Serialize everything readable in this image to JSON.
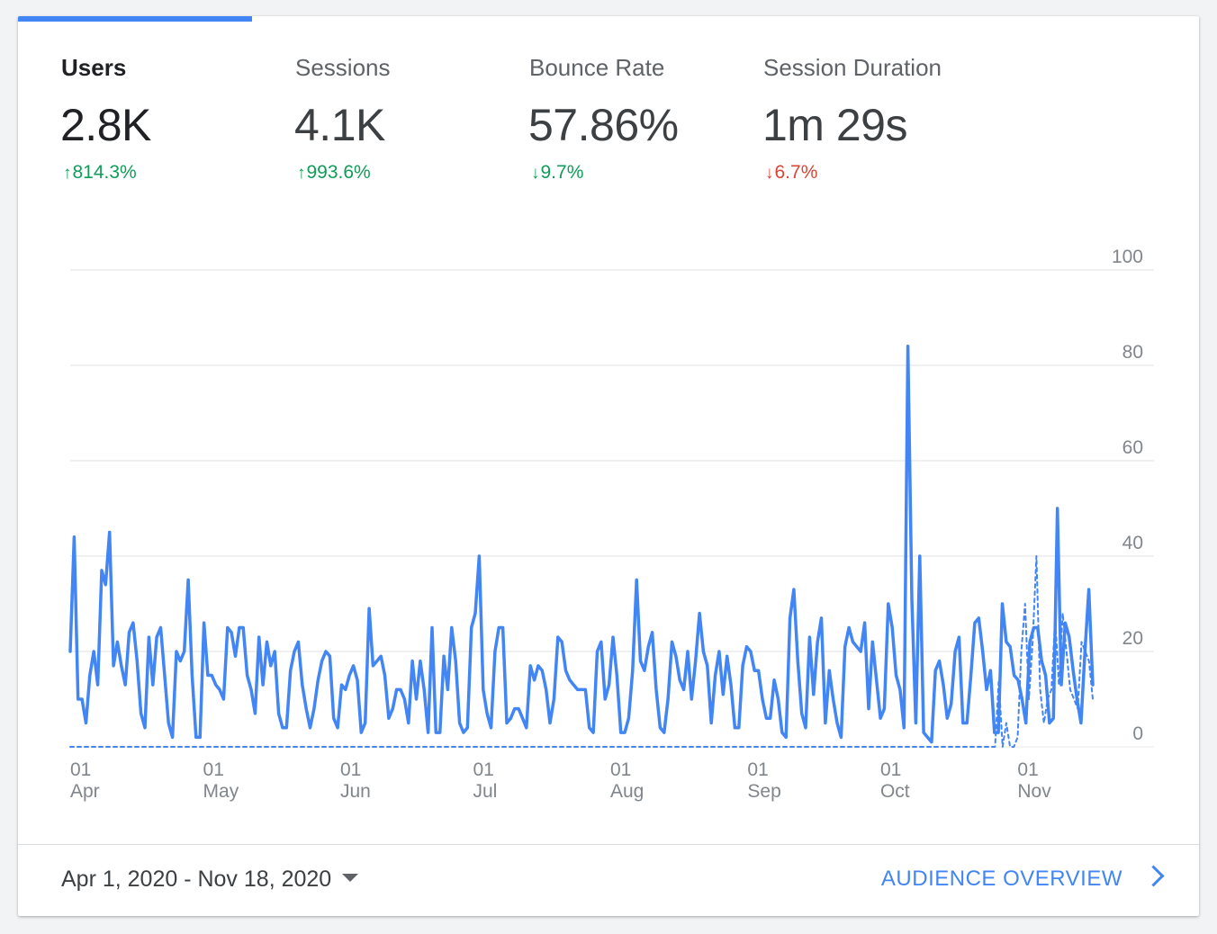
{
  "metrics": [
    {
      "label": "Users",
      "value": "2.8K",
      "change": "814.3%",
      "direction": "up",
      "color": "#0f9d58",
      "active": true
    },
    {
      "label": "Sessions",
      "value": "4.1K",
      "change": "993.6%",
      "direction": "up",
      "color": "#0f9d58",
      "active": false
    },
    {
      "label": "Bounce Rate",
      "value": "57.86%",
      "change": "9.7%",
      "direction": "down",
      "color": "#0f9d58",
      "active": false
    },
    {
      "label": "Session Duration",
      "value": "1m 29s",
      "change": "6.7%",
      "direction": "down",
      "color": "#db4437",
      "active": false
    }
  ],
  "icons": {
    "up": "arrow-up-icon",
    "down": "arrow-down-icon",
    "caret": "caret-down-icon",
    "chevron": "chevron-right-icon"
  },
  "colors": {
    "accent": "#4285f4",
    "positive": "#0f9d58",
    "negative": "#db4437"
  },
  "chart_data": {
    "type": "line",
    "x_start": "2020-04-01",
    "x_end": "2020-11-18",
    "ylim": [
      0,
      100
    ],
    "yticks": [
      0,
      20,
      40,
      60,
      80,
      100
    ],
    "xticks": [
      {
        "day": "01",
        "month": "Apr",
        "date": "2020-04-01"
      },
      {
        "day": "01",
        "month": "May",
        "date": "2020-05-01"
      },
      {
        "day": "01",
        "month": "Jun",
        "date": "2020-06-01"
      },
      {
        "day": "01",
        "month": "Jul",
        "date": "2020-07-01"
      },
      {
        "day": "01",
        "month": "Aug",
        "date": "2020-08-01"
      },
      {
        "day": "01",
        "month": "Sep",
        "date": "2020-09-01"
      },
      {
        "day": "01",
        "month": "Oct",
        "date": "2020-10-01"
      },
      {
        "day": "01",
        "month": "Nov",
        "date": "2020-11-01"
      }
    ],
    "grid": true,
    "series": [
      {
        "name": "Users",
        "style": "solid",
        "color": "#4285f4",
        "values": [
          20,
          44,
          10,
          10,
          5,
          15,
          20,
          13,
          37,
          34,
          45,
          17,
          22,
          17,
          13,
          24,
          26,
          18,
          7,
          4,
          23,
          13,
          23,
          25,
          15,
          5,
          2,
          20,
          18,
          20,
          35,
          15,
          2,
          2,
          26,
          15,
          15,
          13,
          12,
          10,
          25,
          24,
          19,
          25,
          25,
          15,
          12,
          7,
          23,
          13,
          22,
          17,
          20,
          7,
          4,
          4,
          16,
          20,
          22,
          13,
          8,
          4,
          8,
          14,
          18,
          20,
          19,
          6,
          4,
          13,
          12,
          15,
          17,
          14,
          3,
          5,
          29,
          17,
          18,
          19,
          15,
          6,
          8,
          12,
          12,
          10,
          5,
          18,
          10,
          18,
          12,
          3,
          25,
          3,
          3,
          19,
          12,
          25,
          18,
          5,
          3,
          4,
          25,
          28,
          40,
          12,
          7,
          4,
          20,
          25,
          25,
          5,
          6,
          8,
          8,
          6,
          4,
          17,
          14,
          17,
          16,
          12,
          5,
          10,
          23,
          22,
          16,
          14,
          13,
          12,
          12,
          12,
          4,
          3,
          20,
          22,
          10,
          13,
          23,
          15,
          3,
          3,
          6,
          16,
          35,
          18,
          16,
          21,
          24,
          12,
          4,
          3,
          10,
          22,
          19,
          14,
          12,
          20,
          10,
          18,
          28,
          20,
          17,
          5,
          15,
          20,
          11,
          19,
          13,
          4,
          4,
          17,
          21,
          20,
          16,
          16,
          10,
          6,
          6,
          14,
          10,
          3,
          2,
          27,
          33,
          18,
          7,
          4,
          23,
          11,
          22,
          27,
          5,
          16,
          10,
          5,
          2,
          21,
          25,
          22,
          21,
          20,
          26,
          8,
          22,
          14,
          6,
          8,
          30,
          25,
          15,
          12,
          4,
          84,
          31,
          5,
          40,
          3,
          2,
          1,
          16,
          18,
          13,
          6,
          9,
          20,
          23,
          5,
          5,
          15,
          26,
          27,
          20,
          12,
          16,
          3,
          3,
          30,
          22,
          21,
          15,
          14,
          10,
          5,
          22,
          25,
          25,
          18,
          15,
          5,
          6,
          50,
          13,
          26,
          23,
          16,
          10,
          5,
          20,
          33,
          13
        ]
      },
      {
        "name": "Users (previous period)",
        "style": "dashed",
        "color": "#4285f4",
        "values": [
          0,
          0,
          0,
          0,
          0,
          0,
          0,
          0,
          0,
          0,
          0,
          0,
          0,
          0,
          0,
          0,
          0,
          0,
          0,
          0,
          0,
          0,
          0,
          0,
          0,
          0,
          0,
          0,
          0,
          0,
          0,
          0,
          0,
          0,
          0,
          0,
          0,
          0,
          0,
          0,
          0,
          0,
          0,
          0,
          0,
          0,
          0,
          0,
          0,
          0,
          0,
          0,
          0,
          0,
          0,
          0,
          0,
          0,
          0,
          0,
          0,
          0,
          0,
          0,
          0,
          0,
          0,
          0,
          0,
          0,
          0,
          0,
          0,
          0,
          0,
          0,
          0,
          0,
          0,
          0,
          0,
          0,
          0,
          0,
          0,
          0,
          0,
          0,
          0,
          0,
          0,
          0,
          0,
          0,
          0,
          0,
          0,
          0,
          0,
          0,
          0,
          0,
          0,
          0,
          0,
          0,
          0,
          0,
          0,
          0,
          0,
          0,
          0,
          0,
          0,
          0,
          0,
          0,
          0,
          0,
          0,
          0,
          0,
          0,
          0,
          0,
          0,
          0,
          0,
          0,
          0,
          0,
          0,
          0,
          0,
          0,
          0,
          0,
          0,
          0,
          0,
          0,
          0,
          0,
          0,
          0,
          0,
          0,
          0,
          0,
          0,
          0,
          0,
          0,
          0,
          0,
          0,
          0,
          0,
          0,
          0,
          0,
          0,
          0,
          0,
          0,
          0,
          0,
          0,
          0,
          0,
          0,
          0,
          0,
          0,
          0,
          0,
          0,
          0,
          0,
          0,
          0,
          0,
          0,
          0,
          0,
          0,
          0,
          0,
          0,
          0,
          0,
          0,
          0,
          0,
          0,
          0,
          0,
          0,
          0,
          0,
          0,
          0,
          0,
          0,
          0,
          0,
          0,
          0,
          0,
          0,
          0,
          0,
          0,
          0,
          0,
          0,
          0,
          0,
          0,
          0,
          0,
          0,
          0,
          0,
          0,
          0,
          0,
          0,
          0,
          0,
          0,
          0,
          0,
          0,
          0,
          0,
          0,
          0,
          0,
          0,
          0,
          0,
          0,
          0,
          0,
          0,
          14,
          0,
          5,
          0,
          0,
          2,
          20,
          30,
          10,
          22,
          40,
          12,
          5,
          10,
          12,
          27,
          13,
          28,
          20,
          12,
          10,
          8,
          22,
          20,
          18,
          10
        ]
      }
    ]
  },
  "footer": {
    "date_range": "Apr 1, 2020 - Nov 18, 2020",
    "link_label": "AUDIENCE OVERVIEW"
  }
}
